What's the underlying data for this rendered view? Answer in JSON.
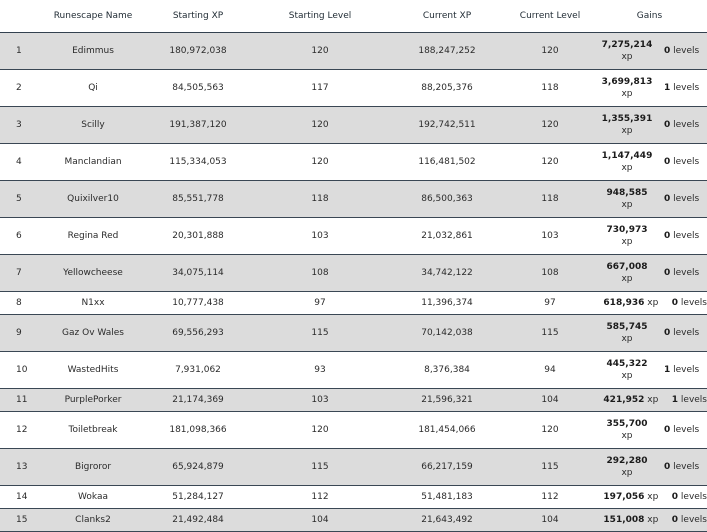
{
  "headers": {
    "name": "Runescape Name",
    "starting_xp": "Starting XP",
    "starting_level": "Starting Level",
    "current_xp": "Current XP",
    "current_level": "Current Level",
    "gains": "Gains"
  },
  "xp_unit": "xp",
  "levels_unit": "levels",
  "rows": [
    {
      "rank": "1",
      "name": "Edimmus",
      "starting_xp": "180,972,038",
      "starting_level": "120",
      "current_xp": "188,247,252",
      "current_level": "120",
      "xp_gain": "7,275,214",
      "level_gain": "0"
    },
    {
      "rank": "2",
      "name": "Qi",
      "starting_xp": "84,505,563",
      "starting_level": "117",
      "current_xp": "88,205,376",
      "current_level": "118",
      "xp_gain": "3,699,813",
      "level_gain": "1"
    },
    {
      "rank": "3",
      "name": "Scilly",
      "starting_xp": "191,387,120",
      "starting_level": "120",
      "current_xp": "192,742,511",
      "current_level": "120",
      "xp_gain": "1,355,391",
      "level_gain": "0"
    },
    {
      "rank": "4",
      "name": "Manclandian",
      "starting_xp": "115,334,053",
      "starting_level": "120",
      "current_xp": "116,481,502",
      "current_level": "120",
      "xp_gain": "1,147,449",
      "level_gain": "0"
    },
    {
      "rank": "5",
      "name": "Quixilver10",
      "starting_xp": "85,551,778",
      "starting_level": "118",
      "current_xp": "86,500,363",
      "current_level": "118",
      "xp_gain": "948,585",
      "level_gain": "0"
    },
    {
      "rank": "6",
      "name": "Regina Red",
      "starting_xp": "20,301,888",
      "starting_level": "103",
      "current_xp": "21,032,861",
      "current_level": "103",
      "xp_gain": "730,973",
      "level_gain": "0"
    },
    {
      "rank": "7",
      "name": "Yellowcheese",
      "starting_xp": "34,075,114",
      "starting_level": "108",
      "current_xp": "34,742,122",
      "current_level": "108",
      "xp_gain": "667,008",
      "level_gain": "0"
    },
    {
      "rank": "8",
      "name": "N1xx",
      "starting_xp": "10,777,438",
      "starting_level": "97",
      "current_xp": "11,396,374",
      "current_level": "97",
      "xp_gain": "618,936",
      "level_gain": "0"
    },
    {
      "rank": "9",
      "name": "Gaz Ov Wales",
      "starting_xp": "69,556,293",
      "starting_level": "115",
      "current_xp": "70,142,038",
      "current_level": "115",
      "xp_gain": "585,745",
      "level_gain": "0"
    },
    {
      "rank": "10",
      "name": "WastedHits",
      "starting_xp": "7,931,062",
      "starting_level": "93",
      "current_xp": "8,376,384",
      "current_level": "94",
      "xp_gain": "445,322",
      "level_gain": "1"
    },
    {
      "rank": "11",
      "name": "PurplePorker",
      "starting_xp": "21,174,369",
      "starting_level": "103",
      "current_xp": "21,596,321",
      "current_level": "104",
      "xp_gain": "421,952",
      "level_gain": "1"
    },
    {
      "rank": "12",
      "name": "Toiletbreak",
      "starting_xp": "181,098,366",
      "starting_level": "120",
      "current_xp": "181,454,066",
      "current_level": "120",
      "xp_gain": "355,700",
      "level_gain": "0"
    },
    {
      "rank": "13",
      "name": "Bigroror",
      "starting_xp": "65,924,879",
      "starting_level": "115",
      "current_xp": "66,217,159",
      "current_level": "115",
      "xp_gain": "292,280",
      "level_gain": "0"
    },
    {
      "rank": "14",
      "name": "Wokaa",
      "starting_xp": "51,284,127",
      "starting_level": "112",
      "current_xp": "51,481,183",
      "current_level": "112",
      "xp_gain": "197,056",
      "level_gain": "0"
    },
    {
      "rank": "15",
      "name": "Clanks2",
      "starting_xp": "21,492,484",
      "starting_level": "104",
      "current_xp": "21,643,492",
      "current_level": "104",
      "xp_gain": "151,008",
      "level_gain": "0"
    }
  ]
}
